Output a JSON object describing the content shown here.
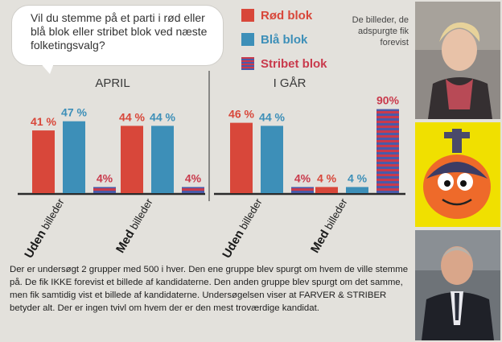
{
  "question": "Vil du stemme på et parti i rød eller blå blok eller stribet blok ved næste folketingsvalg?",
  "legend": [
    {
      "label": "Rød blok",
      "color": "#d8473a",
      "pattern": "solid"
    },
    {
      "label": "Blå blok",
      "color": "#3d8fb8",
      "pattern": "solid"
    },
    {
      "label": "Stribet blok",
      "color": "#c93a4c",
      "pattern": "striped"
    }
  ],
  "side_note": "De billeder, de adspurgte fik forevist",
  "chart_data": [
    {
      "type": "bar",
      "title": "APRIL",
      "categories": [
        "Uden billeder",
        "Med billeder"
      ],
      "series": [
        {
          "name": "Rød blok",
          "values": [
            41,
            44
          ],
          "labels": [
            "41 %",
            "44 %"
          ]
        },
        {
          "name": "Blå blok",
          "values": [
            47,
            44
          ],
          "labels": [
            "47 %",
            "44 %"
          ]
        },
        {
          "name": "Stribet blok",
          "values": [
            4,
            4
          ],
          "labels": [
            "4%",
            "4%"
          ]
        }
      ]
    },
    {
      "type": "bar",
      "title": "I GÅR",
      "categories": [
        "Uden billeder",
        "Med billeder"
      ],
      "series": [
        {
          "name": "Rød blok",
          "values": [
            46,
            4
          ],
          "labels": [
            "46 %",
            "4 %"
          ]
        },
        {
          "name": "Blå blok",
          "values": [
            44,
            4
          ],
          "labels": [
            "44 %",
            "4 %"
          ]
        },
        {
          "name": "Stribet blok",
          "values": [
            4,
            90
          ],
          "labels": [
            "4%",
            "90%"
          ]
        }
      ]
    }
  ],
  "category_parts": [
    {
      "bold": "Uden",
      "rest": " billeder"
    },
    {
      "bold": "Med",
      "rest": " billeder"
    }
  ],
  "bottom_text": "Der er undersøgt 2 grupper med 500 i hver. Den ene gruppe blev spurgt om hvem de ville stemme på. De fik IKKE forevist et billede af kandidaterne. Den anden gruppe blev spurgt om det samme, men fik samtidig vist et billede af kandidaterne. Undersøgelsen viser at FARVER & STRIBER betyder alt. Der er ingen tvivl om hvem der er den mest troværdige kandidat."
}
